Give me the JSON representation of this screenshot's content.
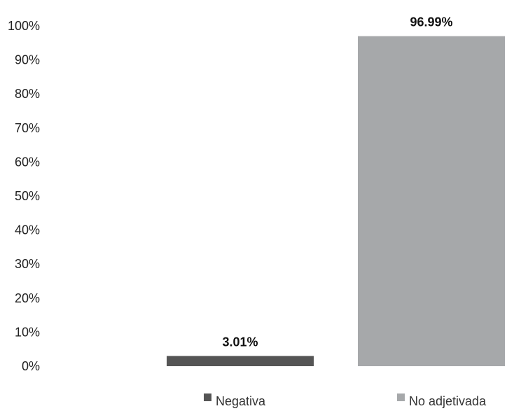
{
  "chart_data": {
    "type": "bar",
    "categories": [
      "Negativa",
      "No adjetivada"
    ],
    "values": [
      3.01,
      96.99
    ],
    "value_labels": [
      "3.01%",
      "96.99%"
    ],
    "colors": [
      "#555555",
      "#a6a8aa"
    ],
    "ylim": [
      0,
      100
    ],
    "y_ticks": [
      0,
      10,
      20,
      30,
      40,
      50,
      60,
      70,
      80,
      90,
      100
    ],
    "y_tick_labels": [
      "0%",
      "10%",
      "20%",
      "30%",
      "40%",
      "50%",
      "60%",
      "70%",
      "80%",
      "90%",
      "100%"
    ],
    "grid": false,
    "legend": {
      "position": "bottom",
      "entries": [
        {
          "label": "Negativa",
          "color": "#555555"
        },
        {
          "label": "No adjetivada",
          "color": "#a6a8aa"
        }
      ]
    },
    "title": "",
    "xlabel": "",
    "ylabel": ""
  }
}
